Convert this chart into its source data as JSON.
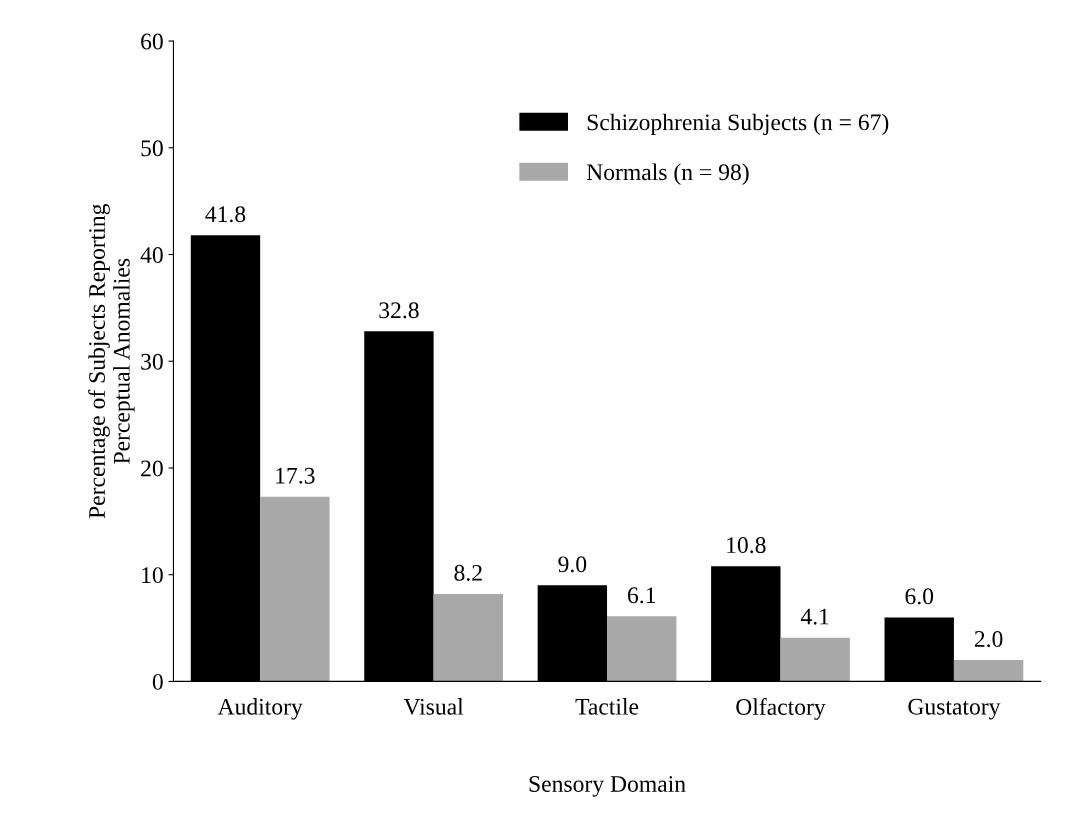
{
  "chart_data": {
    "type": "bar",
    "xlabel": "Sensory Domain",
    "ylabel": "Percentage of Subjects Reporting\nPerceptual Anomalies",
    "categories": [
      "Auditory",
      "Visual",
      "Tactile",
      "Olfactory",
      "Gustatory"
    ],
    "series": [
      {
        "name": "Schizophrenia Subjects (n = 67)",
        "color": "#000000",
        "values": [
          41.8,
          32.8,
          9.0,
          10.8,
          6.0
        ],
        "value_labels": [
          "41.8",
          "32.8",
          "9.0",
          "10.8",
          "6.0"
        ]
      },
      {
        "name": "Normals (n = 98)",
        "color": "#a8a8a8",
        "values": [
          17.3,
          8.2,
          6.1,
          4.1,
          2.0
        ],
        "value_labels": [
          "17.3",
          "8.2",
          "6.1",
          "4.1",
          "2.0"
        ]
      }
    ],
    "ylim": [
      0,
      60
    ],
    "yticks": [
      0,
      10,
      20,
      30,
      40,
      50,
      60
    ],
    "grid": false,
    "legend": "top right"
  }
}
